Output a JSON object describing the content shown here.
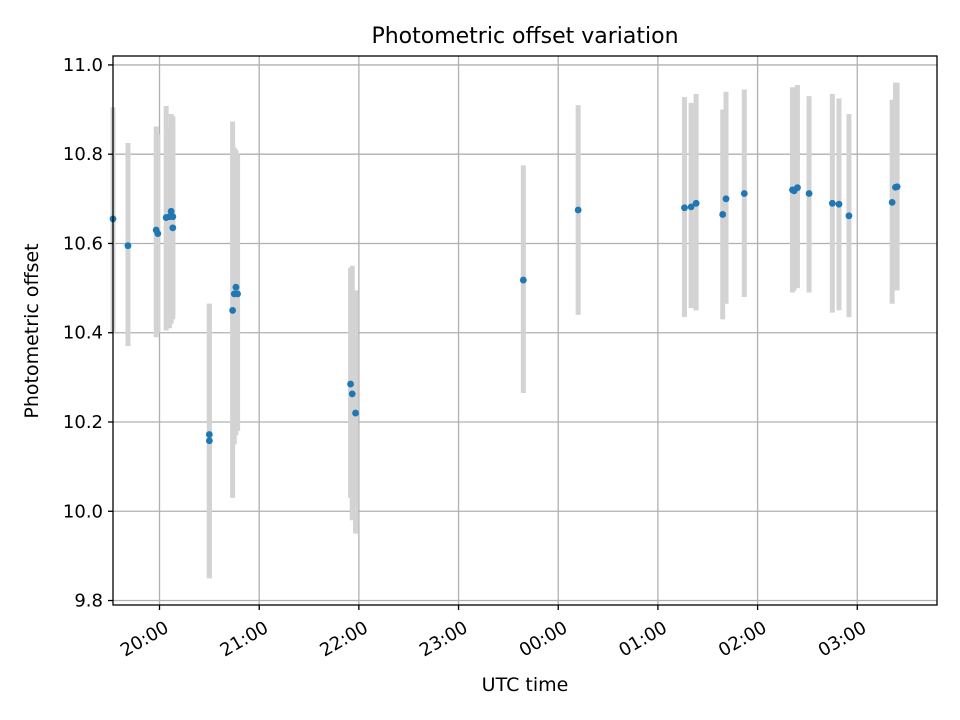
{
  "chart_data": {
    "type": "scatter",
    "title": "Photometric offset variation",
    "xlabel": "UTC time",
    "ylabel": "Photometric offset",
    "x_type": "time",
    "xlim": [
      "19:32",
      "03:48"
    ],
    "ylim": [
      9.79,
      11.02
    ],
    "x_ticks": [
      "20:00",
      "21:00",
      "22:00",
      "23:00",
      "00:00",
      "01:00",
      "02:00",
      "03:00"
    ],
    "y_ticks": [
      "9.8",
      "10.0",
      "10.2",
      "10.4",
      "10.6",
      "10.8",
      "11.0"
    ],
    "grid": true,
    "colors": {
      "points": "#1f77b4",
      "errorbars": "#d3d3d3",
      "grid": "#b0b0b0",
      "axes": "#000000"
    },
    "series": [
      {
        "points": [
          {
            "x": "19:32",
            "y": 10.655,
            "lo": 10.4,
            "hi": 10.905
          },
          {
            "x": "19:41",
            "y": 10.595,
            "lo": 10.37,
            "hi": 10.825
          },
          {
            "x": "19:58",
            "y": 10.63,
            "lo": 10.39,
            "hi": 10.862
          },
          {
            "x": "19:59",
            "y": 10.622,
            "lo": 10.4,
            "hi": 10.845
          },
          {
            "x": "20:04",
            "y": 10.658,
            "lo": 10.405,
            "hi": 10.908
          },
          {
            "x": "20:06",
            "y": 10.66,
            "lo": 10.41,
            "hi": 10.86
          },
          {
            "x": "20:07",
            "y": 10.672,
            "lo": 10.42,
            "hi": 10.89
          },
          {
            "x": "20:08",
            "y": 10.635,
            "lo": 10.43,
            "hi": 10.885
          },
          {
            "x": "20:08",
            "y": 10.66,
            "lo": 10.44,
            "hi": 10.88
          },
          {
            "x": "20:30",
            "y": 10.172,
            "lo": 9.85,
            "hi": 10.465
          },
          {
            "x": "20:30",
            "y": 10.158,
            "lo": 9.85,
            "hi": 10.465
          },
          {
            "x": "20:44",
            "y": 10.45,
            "lo": 10.03,
            "hi": 10.873
          },
          {
            "x": "20:45",
            "y": 10.487,
            "lo": 10.15,
            "hi": 10.815
          },
          {
            "x": "20:46",
            "y": 10.502,
            "lo": 10.17,
            "hi": 10.81
          },
          {
            "x": "20:47",
            "y": 10.487,
            "lo": 10.18,
            "hi": 10.8
          },
          {
            "x": "21:55",
            "y": 10.285,
            "lo": 10.03,
            "hi": 10.545
          },
          {
            "x": "21:56",
            "y": 10.263,
            "lo": 9.98,
            "hi": 10.55
          },
          {
            "x": "21:58",
            "y": 10.22,
            "lo": 9.95,
            "hi": 10.495
          },
          {
            "x": "23:39",
            "y": 10.518,
            "lo": 10.265,
            "hi": 10.775
          },
          {
            "x": "00:12",
            "y": 10.675,
            "lo": 10.44,
            "hi": 10.91
          },
          {
            "x": "01:16",
            "y": 10.68,
            "lo": 10.435,
            "hi": 10.928
          },
          {
            "x": "01:20",
            "y": 10.682,
            "lo": 10.455,
            "hi": 10.915
          },
          {
            "x": "01:23",
            "y": 10.69,
            "lo": 10.45,
            "hi": 10.935
          },
          {
            "x": "01:39",
            "y": 10.665,
            "lo": 10.43,
            "hi": 10.9
          },
          {
            "x": "01:41",
            "y": 10.7,
            "lo": 10.465,
            "hi": 10.94
          },
          {
            "x": "01:52",
            "y": 10.712,
            "lo": 10.48,
            "hi": 10.945
          },
          {
            "x": "02:21",
            "y": 10.72,
            "lo": 10.49,
            "hi": 10.95
          },
          {
            "x": "02:22",
            "y": 10.718,
            "lo": 10.495,
            "hi": 10.945
          },
          {
            "x": "02:24",
            "y": 10.725,
            "lo": 10.5,
            "hi": 10.955
          },
          {
            "x": "02:31",
            "y": 10.712,
            "lo": 10.49,
            "hi": 10.93
          },
          {
            "x": "02:45",
            "y": 10.69,
            "lo": 10.445,
            "hi": 10.935
          },
          {
            "x": "02:49",
            "y": 10.688,
            "lo": 10.45,
            "hi": 10.925
          },
          {
            "x": "02:55",
            "y": 10.662,
            "lo": 10.435,
            "hi": 10.89
          },
          {
            "x": "03:21",
            "y": 10.692,
            "lo": 10.465,
            "hi": 10.922
          },
          {
            "x": "03:23",
            "y": 10.726,
            "lo": 10.495,
            "hi": 10.96
          },
          {
            "x": "03:24",
            "y": 10.727,
            "lo": 10.495,
            "hi": 10.96
          }
        ]
      }
    ]
  }
}
